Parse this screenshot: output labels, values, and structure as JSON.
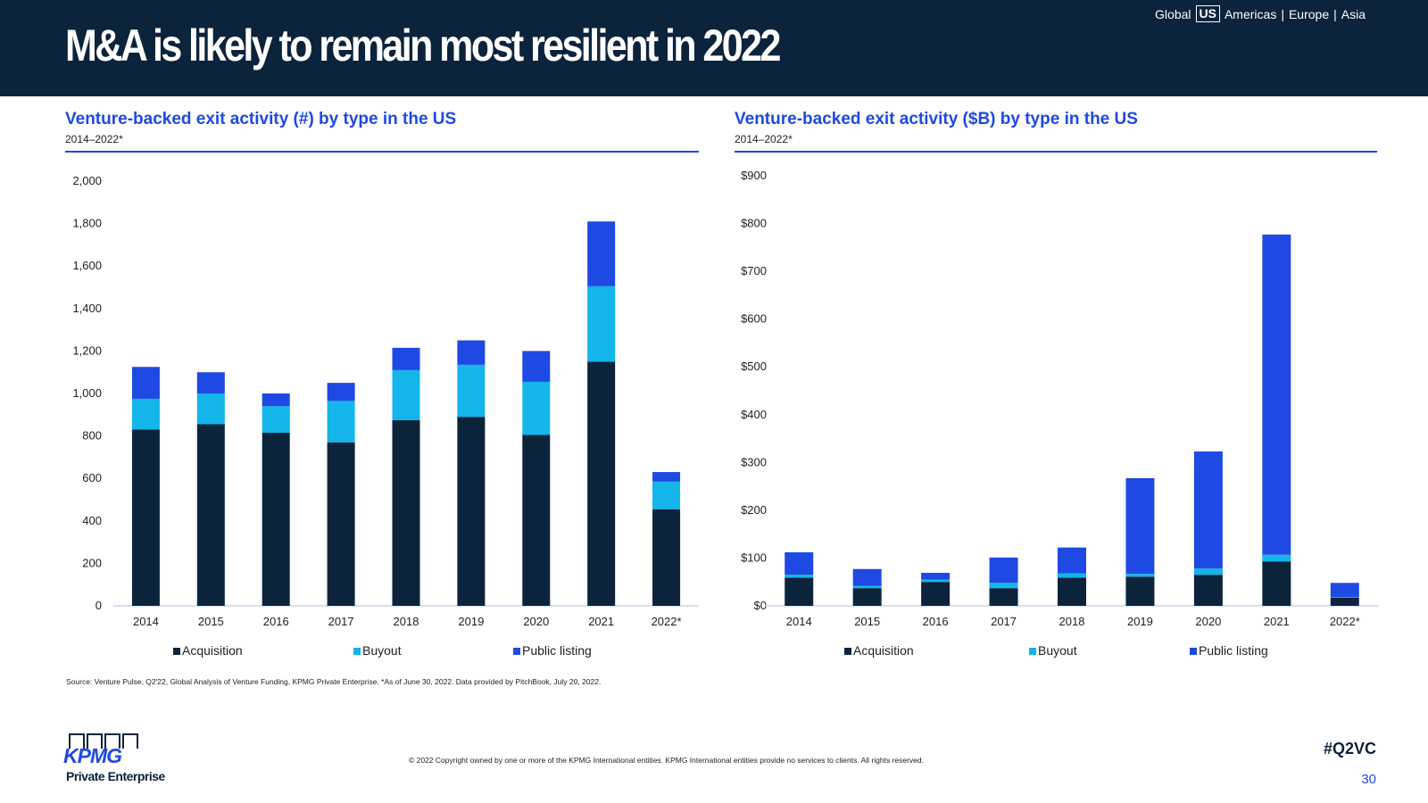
{
  "header": {
    "title": "M&A is likely to remain most resilient in 2022",
    "regions": [
      "Global",
      "US",
      "Americas",
      "Europe",
      "Asia"
    ],
    "active_region": "US"
  },
  "left_panel": {
    "title": "Venture-backed exit activity (#) by type in the US",
    "subtitle": "2014–2022*"
  },
  "right_panel": {
    "title": "Venture-backed exit activity ($B) by type in the US",
    "subtitle": "2014–2022*"
  },
  "colors": {
    "Acquisition": "#0c233c",
    "Buyout": "#13b5ea",
    "Public listing": "#1e49e2",
    "brand_navy": "#0c233c",
    "brand_blue": "#1e49e2"
  },
  "chart_data": [
    {
      "type": "bar",
      "stacked": true,
      "title": "Venture-backed exit activity (#) by type in the US",
      "subtitle": "2014–2022*",
      "categories": [
        "2014",
        "2015",
        "2016",
        "2017",
        "2018",
        "2019",
        "2020",
        "2021",
        "2022*"
      ],
      "series": [
        {
          "name": "Acquisition",
          "values": [
            830,
            855,
            815,
            770,
            875,
            890,
            805,
            1150,
            455
          ]
        },
        {
          "name": "Buyout",
          "values": [
            145,
            145,
            125,
            195,
            235,
            245,
            250,
            355,
            130
          ]
        },
        {
          "name": "Public listing",
          "values": [
            150,
            100,
            60,
            85,
            105,
            115,
            145,
            305,
            45
          ]
        }
      ],
      "ylim": [
        0,
        2000
      ],
      "yticks": [
        "0",
        "200",
        "400",
        "600",
        "800",
        "1,000",
        "1,200",
        "1,400",
        "1,600",
        "1,800",
        "2,000"
      ],
      "ytick_values": [
        0,
        200,
        400,
        600,
        800,
        1000,
        1200,
        1400,
        1600,
        1800,
        2000
      ],
      "legend": "bottom",
      "grid": false
    },
    {
      "type": "bar",
      "stacked": true,
      "title": "Venture-backed exit activity ($B) by type in the US",
      "subtitle": "2014–2022*",
      "categories": [
        "2014",
        "2015",
        "2016",
        "2017",
        "2018",
        "2019",
        "2020",
        "2021",
        "2022*"
      ],
      "series": [
        {
          "name": "Acquisition",
          "values": [
            59,
            37,
            50,
            37,
            59,
            61,
            65,
            93,
            17
          ]
        },
        {
          "name": "Buyout",
          "values": [
            6,
            5,
            5,
            11,
            9,
            6,
            13,
            14,
            1
          ]
        },
        {
          "name": "Public listing",
          "values": [
            47,
            35,
            14,
            53,
            54,
            200,
            245,
            670,
            30
          ]
        }
      ],
      "ylim": [
        0,
        900
      ],
      "yticks": [
        "$0",
        "$100",
        "$200",
        "$300",
        "$400",
        "$500",
        "$600",
        "$700",
        "$800",
        "$900"
      ],
      "ytick_values": [
        0,
        100,
        200,
        300,
        400,
        500,
        600,
        700,
        800,
        900
      ],
      "legend": "bottom",
      "grid": false
    }
  ],
  "footer": {
    "source": "Source: Venture Pulse, Q2'22, Global Analysis of Venture Funding, KPMG Private Enterprise. *As of June 30, 2022. Data provided by PitchBook, July 20, 2022.",
    "copyright": "© 2022 Copyright owned by one or more of the KPMG International entities. KPMG International entities provide no services to clients. All rights reserved.",
    "hashtag": "#Q2VC",
    "page_number": "30",
    "logo_word": "KPMG",
    "logo_sub": "Private Enterprise"
  }
}
